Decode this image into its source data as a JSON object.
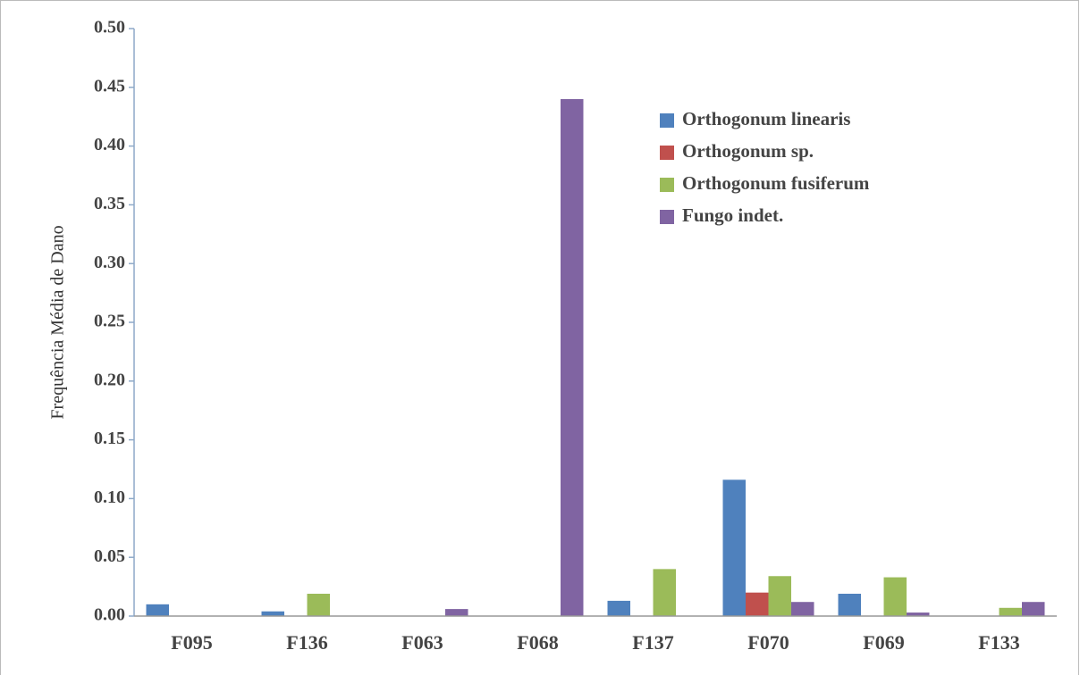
{
  "chart_data": {
    "type": "bar",
    "y_label": "Frequência Média de Dano",
    "categories": [
      "F095",
      "F136",
      "F063",
      "F068",
      "F137",
      "F070",
      "F069",
      "F133"
    ],
    "series": [
      {
        "name": "Orthogonum linearis",
        "color": "#4f81bd",
        "values": [
          0.01,
          0.004,
          0,
          0,
          0.013,
          0.116,
          0.019,
          0
        ]
      },
      {
        "name": "Orthogonum sp.",
        "color": "#c0504d",
        "values": [
          0,
          0,
          0,
          0,
          0,
          0.02,
          0,
          0
        ]
      },
      {
        "name": "Orthogonum fusiferum",
        "color": "#9bbb59",
        "values": [
          0,
          0.019,
          0,
          0,
          0.04,
          0.034,
          0.033,
          0.007
        ]
      },
      {
        "name": "Fungo indet.",
        "color": "#8064a2",
        "values": [
          0,
          0,
          0.006,
          0.44,
          0,
          0.012,
          0.003,
          0.012
        ]
      }
    ],
    "ylim": [
      0,
      0.5
    ],
    "yticks": [
      {
        "value": 0,
        "label": "0.00"
      },
      {
        "value": 0.05,
        "label": "0.05"
      },
      {
        "value": 0.1,
        "label": "0.10"
      },
      {
        "value": 0.15,
        "label": "0.15"
      },
      {
        "value": 0.2,
        "label": "0.20"
      },
      {
        "value": 0.25,
        "label": "0.25"
      },
      {
        "value": 0.3,
        "label": "0.30"
      },
      {
        "value": 0.35,
        "label": "0.35"
      },
      {
        "value": 0.4,
        "label": "0.40"
      },
      {
        "value": 0.45,
        "label": "0.45"
      },
      {
        "value": 0.5,
        "label": "0.50"
      }
    ],
    "legend": "upper right"
  }
}
